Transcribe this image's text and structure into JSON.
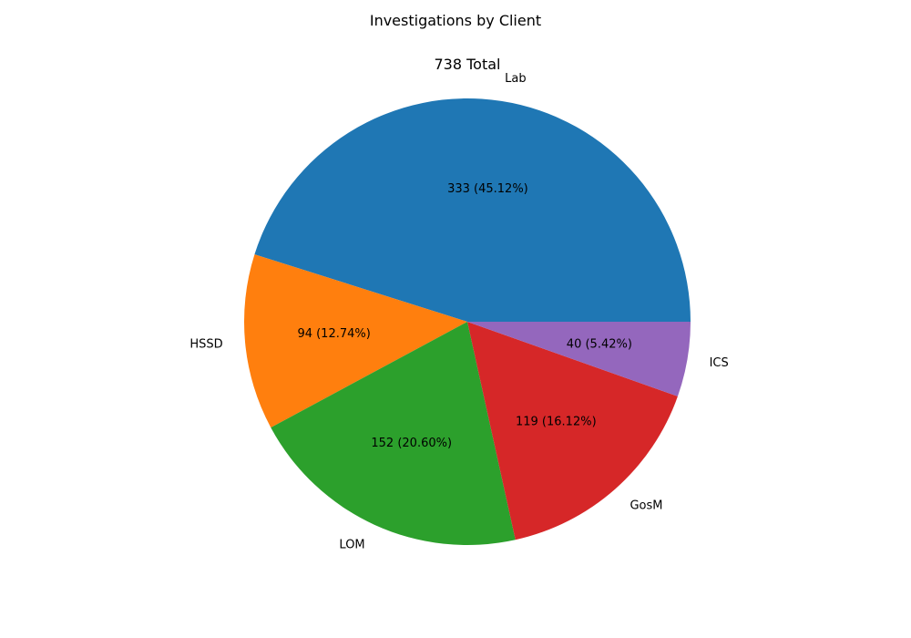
{
  "chart_data": {
    "type": "pie",
    "suptitle": "Investigations by Client",
    "title": "738 Total",
    "total": 738,
    "slices": [
      {
        "label": "Lab",
        "value": 333,
        "autopct": "333 (45.12%)",
        "color": "#1f77b4"
      },
      {
        "label": "HSSD",
        "value": 94,
        "autopct": "94 (12.74%)",
        "color": "#ff7f0e"
      },
      {
        "label": "LOM",
        "value": 152,
        "autopct": "152 (20.60%)",
        "color": "#2ca02c"
      },
      {
        "label": "GosM",
        "value": 119,
        "autopct": "119 (16.12%)",
        "color": "#d62728"
      },
      {
        "label": "ICS",
        "value": 40,
        "autopct": "40 (5.42%)",
        "color": "#9467bd"
      }
    ],
    "start_angle_deg": 0,
    "direction": "counterclockwise"
  }
}
